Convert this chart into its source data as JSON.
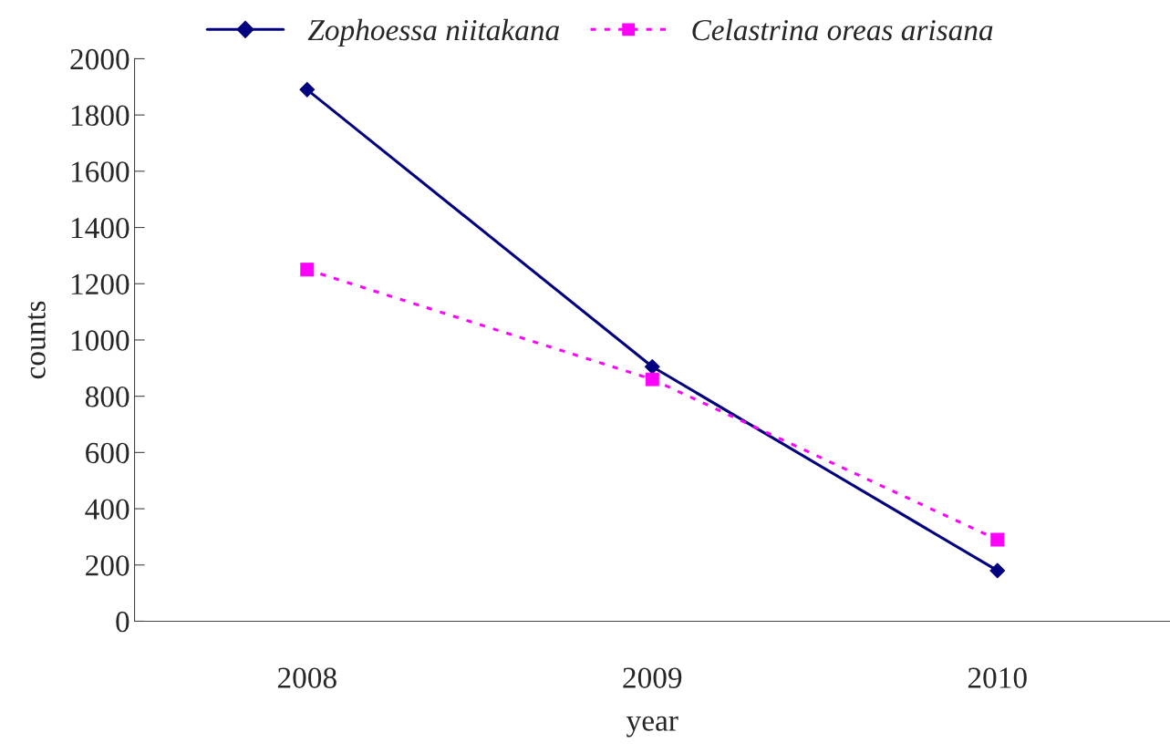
{
  "chart_data": {
    "type": "line",
    "xlabel": "year",
    "ylabel": "counts",
    "categories": [
      "2008",
      "2009",
      "2010"
    ],
    "series": [
      {
        "name": "Zophoessa niitakana",
        "color": "#000080",
        "values": [
          1890,
          905,
          180
        ],
        "marker": "diamond",
        "line_style": "solid"
      },
      {
        "name": "Celastrina oreas arisana",
        "color": "#ff00ff",
        "values": [
          1250,
          860,
          290
        ],
        "marker": "square",
        "line_style": "dotted"
      }
    ],
    "ylim": [
      0,
      2000
    ],
    "yticks": [
      0,
      200,
      400,
      600,
      800,
      1000,
      1200,
      1400,
      1600,
      1800,
      2000
    ],
    "grid": false,
    "legend": "top"
  }
}
